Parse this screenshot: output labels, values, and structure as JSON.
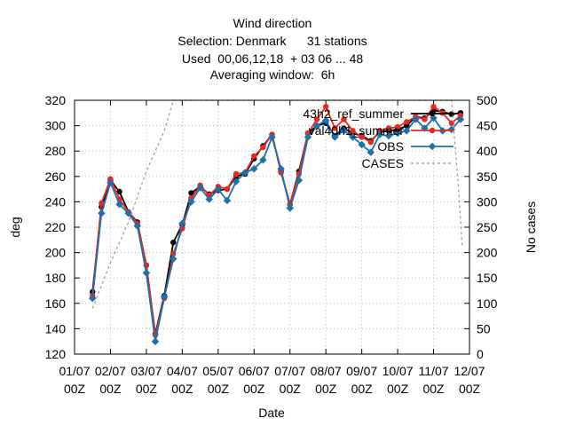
{
  "chart_data": {
    "type": "line",
    "title_lines": [
      "Wind direction",
      "Selection: Denmark      31 stations",
      "Used  00,06,12,18  + 03 06 ... 48",
      "Averaging window:  6h"
    ],
    "xlabel": "Date",
    "ylabel": "deg",
    "y2label": "No cases",
    "ylim": [
      120,
      320
    ],
    "y2lim": [
      0,
      500
    ],
    "yticks": [
      "120",
      "140",
      "160",
      "180",
      "200",
      "220",
      "240",
      "260",
      "280",
      "300",
      "320"
    ],
    "y2ticks": [
      "0",
      "50",
      "100",
      "150",
      "200",
      "250",
      "300",
      "350",
      "400",
      "450",
      "500"
    ],
    "xlim": [
      0,
      11
    ],
    "xticks": [
      {
        "line1": "01/07",
        "line2": "00Z"
      },
      {
        "line1": "02/07",
        "line2": "00Z"
      },
      {
        "line1": "03/07",
        "line2": "00Z"
      },
      {
        "line1": "04/07",
        "line2": "00Z"
      },
      {
        "line1": "05/07",
        "line2": "00Z"
      },
      {
        "line1": "06/07",
        "line2": "00Z"
      },
      {
        "line1": "07/07",
        "line2": "00Z"
      },
      {
        "line1": "08/07",
        "line2": "00Z"
      },
      {
        "line1": "09/07",
        "line2": "00Z"
      },
      {
        "line1": "10/07",
        "line2": "00Z"
      },
      {
        "line1": "11/07",
        "line2": "00Z"
      },
      {
        "line1": "12/07",
        "line2": "00Z"
      }
    ],
    "grid": true,
    "legend_position": "top-right",
    "x": [
      0.5,
      0.75,
      1.0,
      1.25,
      1.5,
      1.75,
      2.0,
      2.25,
      2.5,
      2.75,
      3.0,
      3.25,
      3.5,
      3.75,
      4.0,
      4.25,
      4.5,
      4.75,
      5.0,
      5.25,
      5.5,
      5.75,
      6.0,
      6.25,
      6.5,
      6.75,
      7.0,
      7.25,
      7.5,
      7.75,
      8.0,
      8.25,
      8.5,
      8.75,
      9.0,
      9.25,
      9.5,
      9.75,
      10.0,
      10.25,
      10.5,
      10.75
    ],
    "series": [
      {
        "name": "43h2_ref_summer",
        "color": "#000000",
        "axis": "y",
        "values": [
          169,
          236,
          257,
          248,
          232,
          224,
          190,
          136,
          166,
          208,
          222,
          247,
          252,
          246,
          249,
          250,
          260,
          262,
          274,
          284,
          293,
          264,
          238,
          264,
          294,
          300,
          302,
          292,
          298,
          294,
          292,
          288,
          295,
          296,
          297,
          300,
          307,
          306,
          312,
          311,
          309,
          310
        ]
      },
      {
        "name": "val40h1_summer",
        "color": "#e8281e",
        "axis": "y",
        "values": [
          166,
          239,
          258,
          242,
          232,
          223,
          190,
          135,
          164,
          199,
          219,
          243,
          253,
          245,
          252,
          250,
          262,
          263,
          276,
          283,
          293,
          263,
          238,
          262,
          294,
          305,
          315,
          298,
          305,
          296,
          291,
          287,
          296,
          298,
          299,
          303,
          307,
          305,
          315,
          310,
          302,
          308
        ]
      },
      {
        "name": "OBS",
        "color": "#1f6fab",
        "axis": "y",
        "values": [
          164,
          231,
          255,
          238,
          231,
          221,
          184,
          130,
          165,
          195,
          223,
          240,
          251,
          242,
          250,
          241,
          256,
          263,
          266,
          273,
          291,
          266,
          235,
          257,
          291,
          300,
          304,
          291,
          296,
          291,
          285,
          279,
          293,
          292,
          294,
          296,
          305,
          298,
          306,
          296,
          297,
          305
        ]
      },
      {
        "name": "CASES",
        "color": "#999999",
        "axis": "y2",
        "dashed": true,
        "x": [
          0.5,
          1.0,
          1.5,
          2.0,
          2.5,
          2.75,
          3.0,
          3.5,
          4.0,
          4.5,
          5.0,
          5.5,
          6.0,
          6.5,
          7.0,
          7.5,
          8.0,
          8.5,
          9.0,
          9.5,
          10.0,
          10.25,
          10.5,
          10.7,
          10.8
        ],
        "values": [
          90,
          180,
          260,
          360,
          440,
          500,
          500,
          500,
          500,
          500,
          500,
          500,
          500,
          500,
          500,
          500,
          500,
          500,
          500,
          500,
          500,
          500,
          500,
          320,
          210
        ]
      }
    ]
  }
}
